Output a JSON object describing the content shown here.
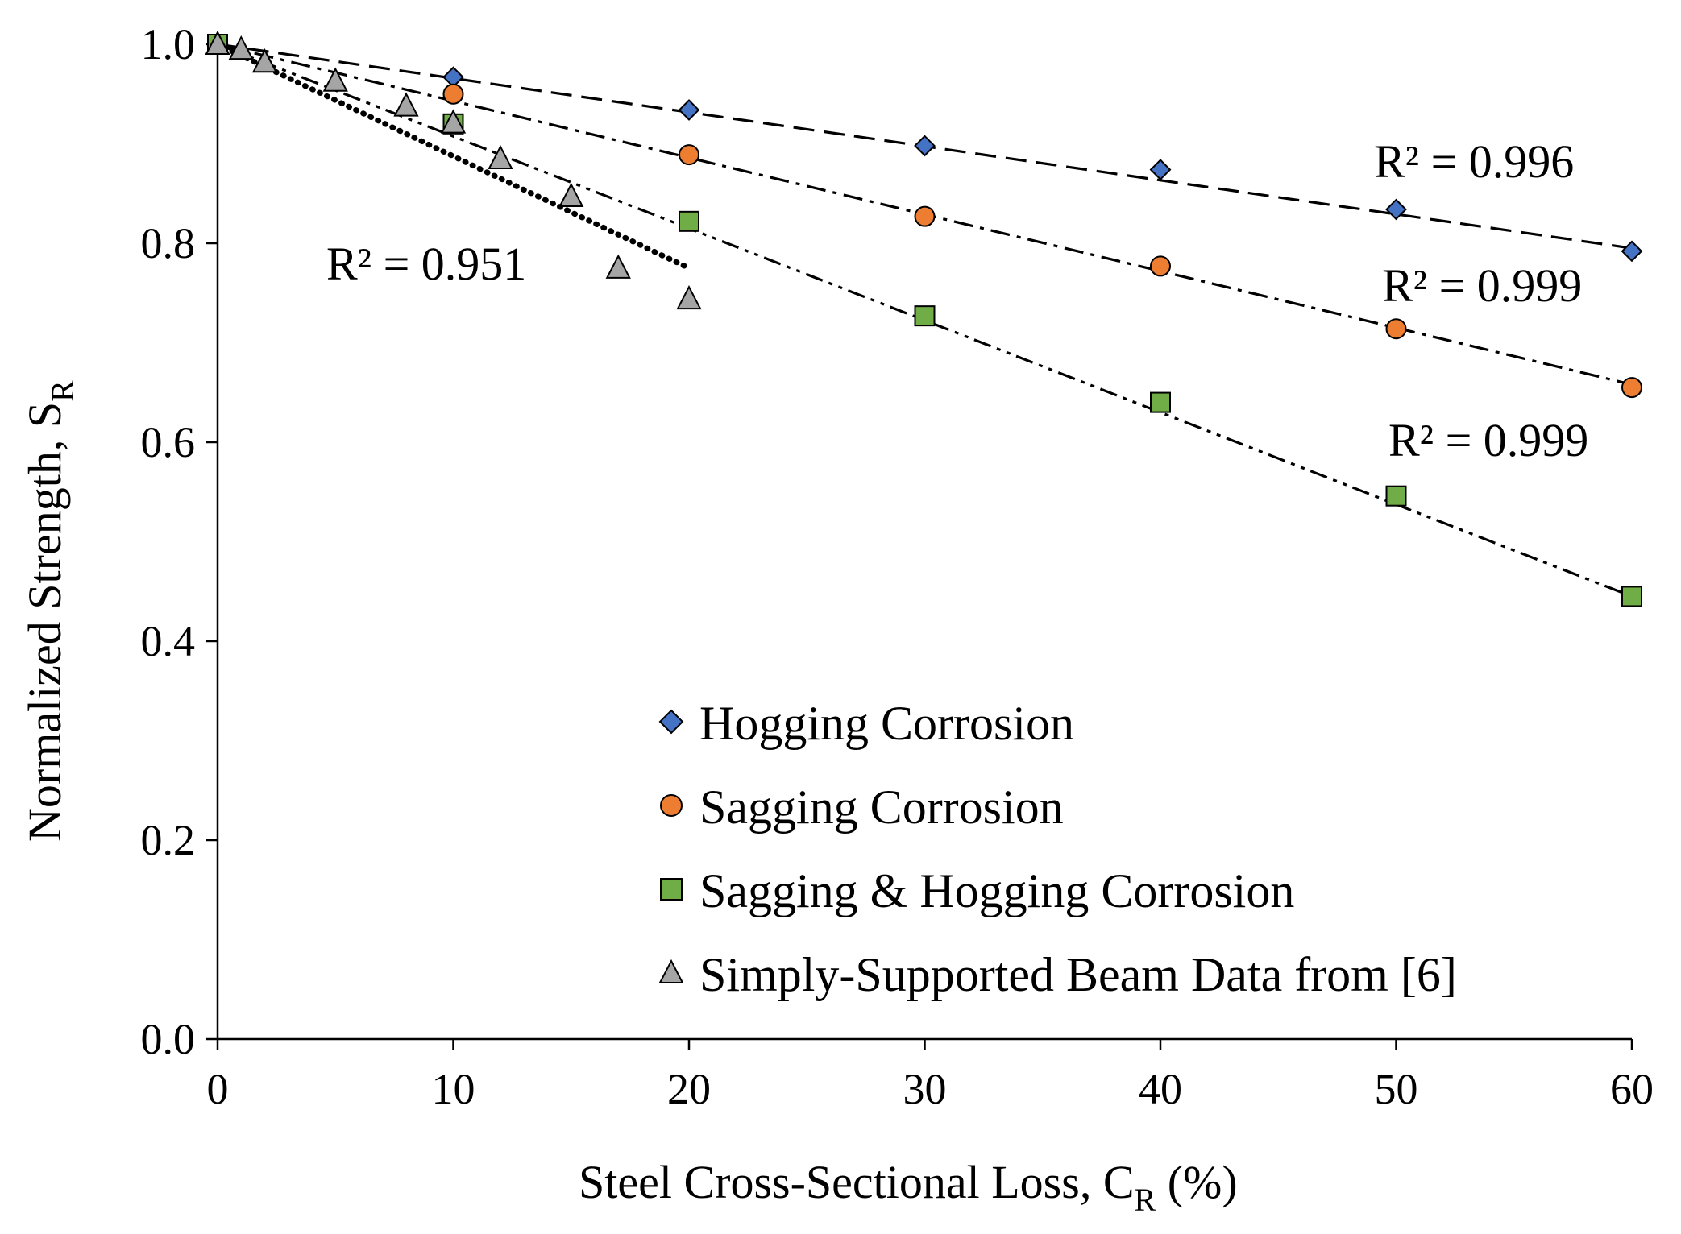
{
  "chart_data": {
    "type": "scatter",
    "title": "",
    "xlabel": "Steel Cross-Sectional Loss, C",
    "xlabel_sub": "R",
    "xlabel_suffix": " (%)",
    "ylabel": "Normalized Strength, S",
    "ylabel_sub": "R",
    "xlim": [
      0,
      60
    ],
    "ylim": [
      0,
      1
    ],
    "x_ticks": [
      0,
      10,
      20,
      30,
      40,
      50,
      60
    ],
    "y_ticks": [
      "0.0",
      "0.2",
      "0.4",
      "0.6",
      "0.8",
      "1.0"
    ],
    "y_tick_values": [
      0,
      0.2,
      0.4,
      0.6,
      0.8,
      1.0
    ],
    "grid": false,
    "legend_position": "bottom-center",
    "series": [
      {
        "name": "Hogging Corrosion",
        "marker": "diamond",
        "color": "#4472C4",
        "x": [
          0,
          10,
          20,
          30,
          40,
          50,
          60
        ],
        "y": [
          1.0,
          0.967,
          0.934,
          0.898,
          0.874,
          0.834,
          0.792
        ],
        "trendline": {
          "style": "dashed",
          "x": [
            0,
            60
          ],
          "y": [
            1.0,
            0.795
          ]
        },
        "r2": "R² = 0.996"
      },
      {
        "name": "Sagging Corrosion",
        "marker": "circle",
        "color": "#ED7D31",
        "x": [
          0,
          10,
          20,
          30,
          40,
          50,
          60
        ],
        "y": [
          1.0,
          0.95,
          0.889,
          0.827,
          0.777,
          0.714,
          0.655
        ],
        "trendline": {
          "style": "dash-dot",
          "x": [
            0,
            60
          ],
          "y": [
            1.0,
            0.658
          ]
        },
        "r2": "R² = 0.999"
      },
      {
        "name": "Sagging & Hogging Corrosion",
        "marker": "square",
        "color": "#70AD47",
        "x": [
          0,
          10,
          20,
          30,
          40,
          50,
          60
        ],
        "y": [
          1.0,
          0.92,
          0.822,
          0.727,
          0.64,
          0.546,
          0.445
        ],
        "trendline": {
          "style": "dash-dot-dot",
          "x": [
            0,
            60
          ],
          "y": [
            1.0,
            0.445
          ]
        },
        "r2": "R² = 0.999"
      },
      {
        "name": "Simply-Supported Beam Data from [6]",
        "marker": "triangle",
        "color": "#A5A5A5",
        "x": [
          0,
          1,
          2,
          5,
          8,
          10,
          12,
          15,
          17,
          20
        ],
        "y": [
          1.0,
          0.995,
          0.982,
          0.963,
          0.938,
          0.921,
          0.885,
          0.847,
          0.775,
          0.744
        ],
        "trendline": {
          "style": "dotted",
          "x": [
            0,
            20
          ],
          "y": [
            1.0,
            0.775
          ]
        },
        "r2": "R² = 0.951"
      }
    ]
  }
}
